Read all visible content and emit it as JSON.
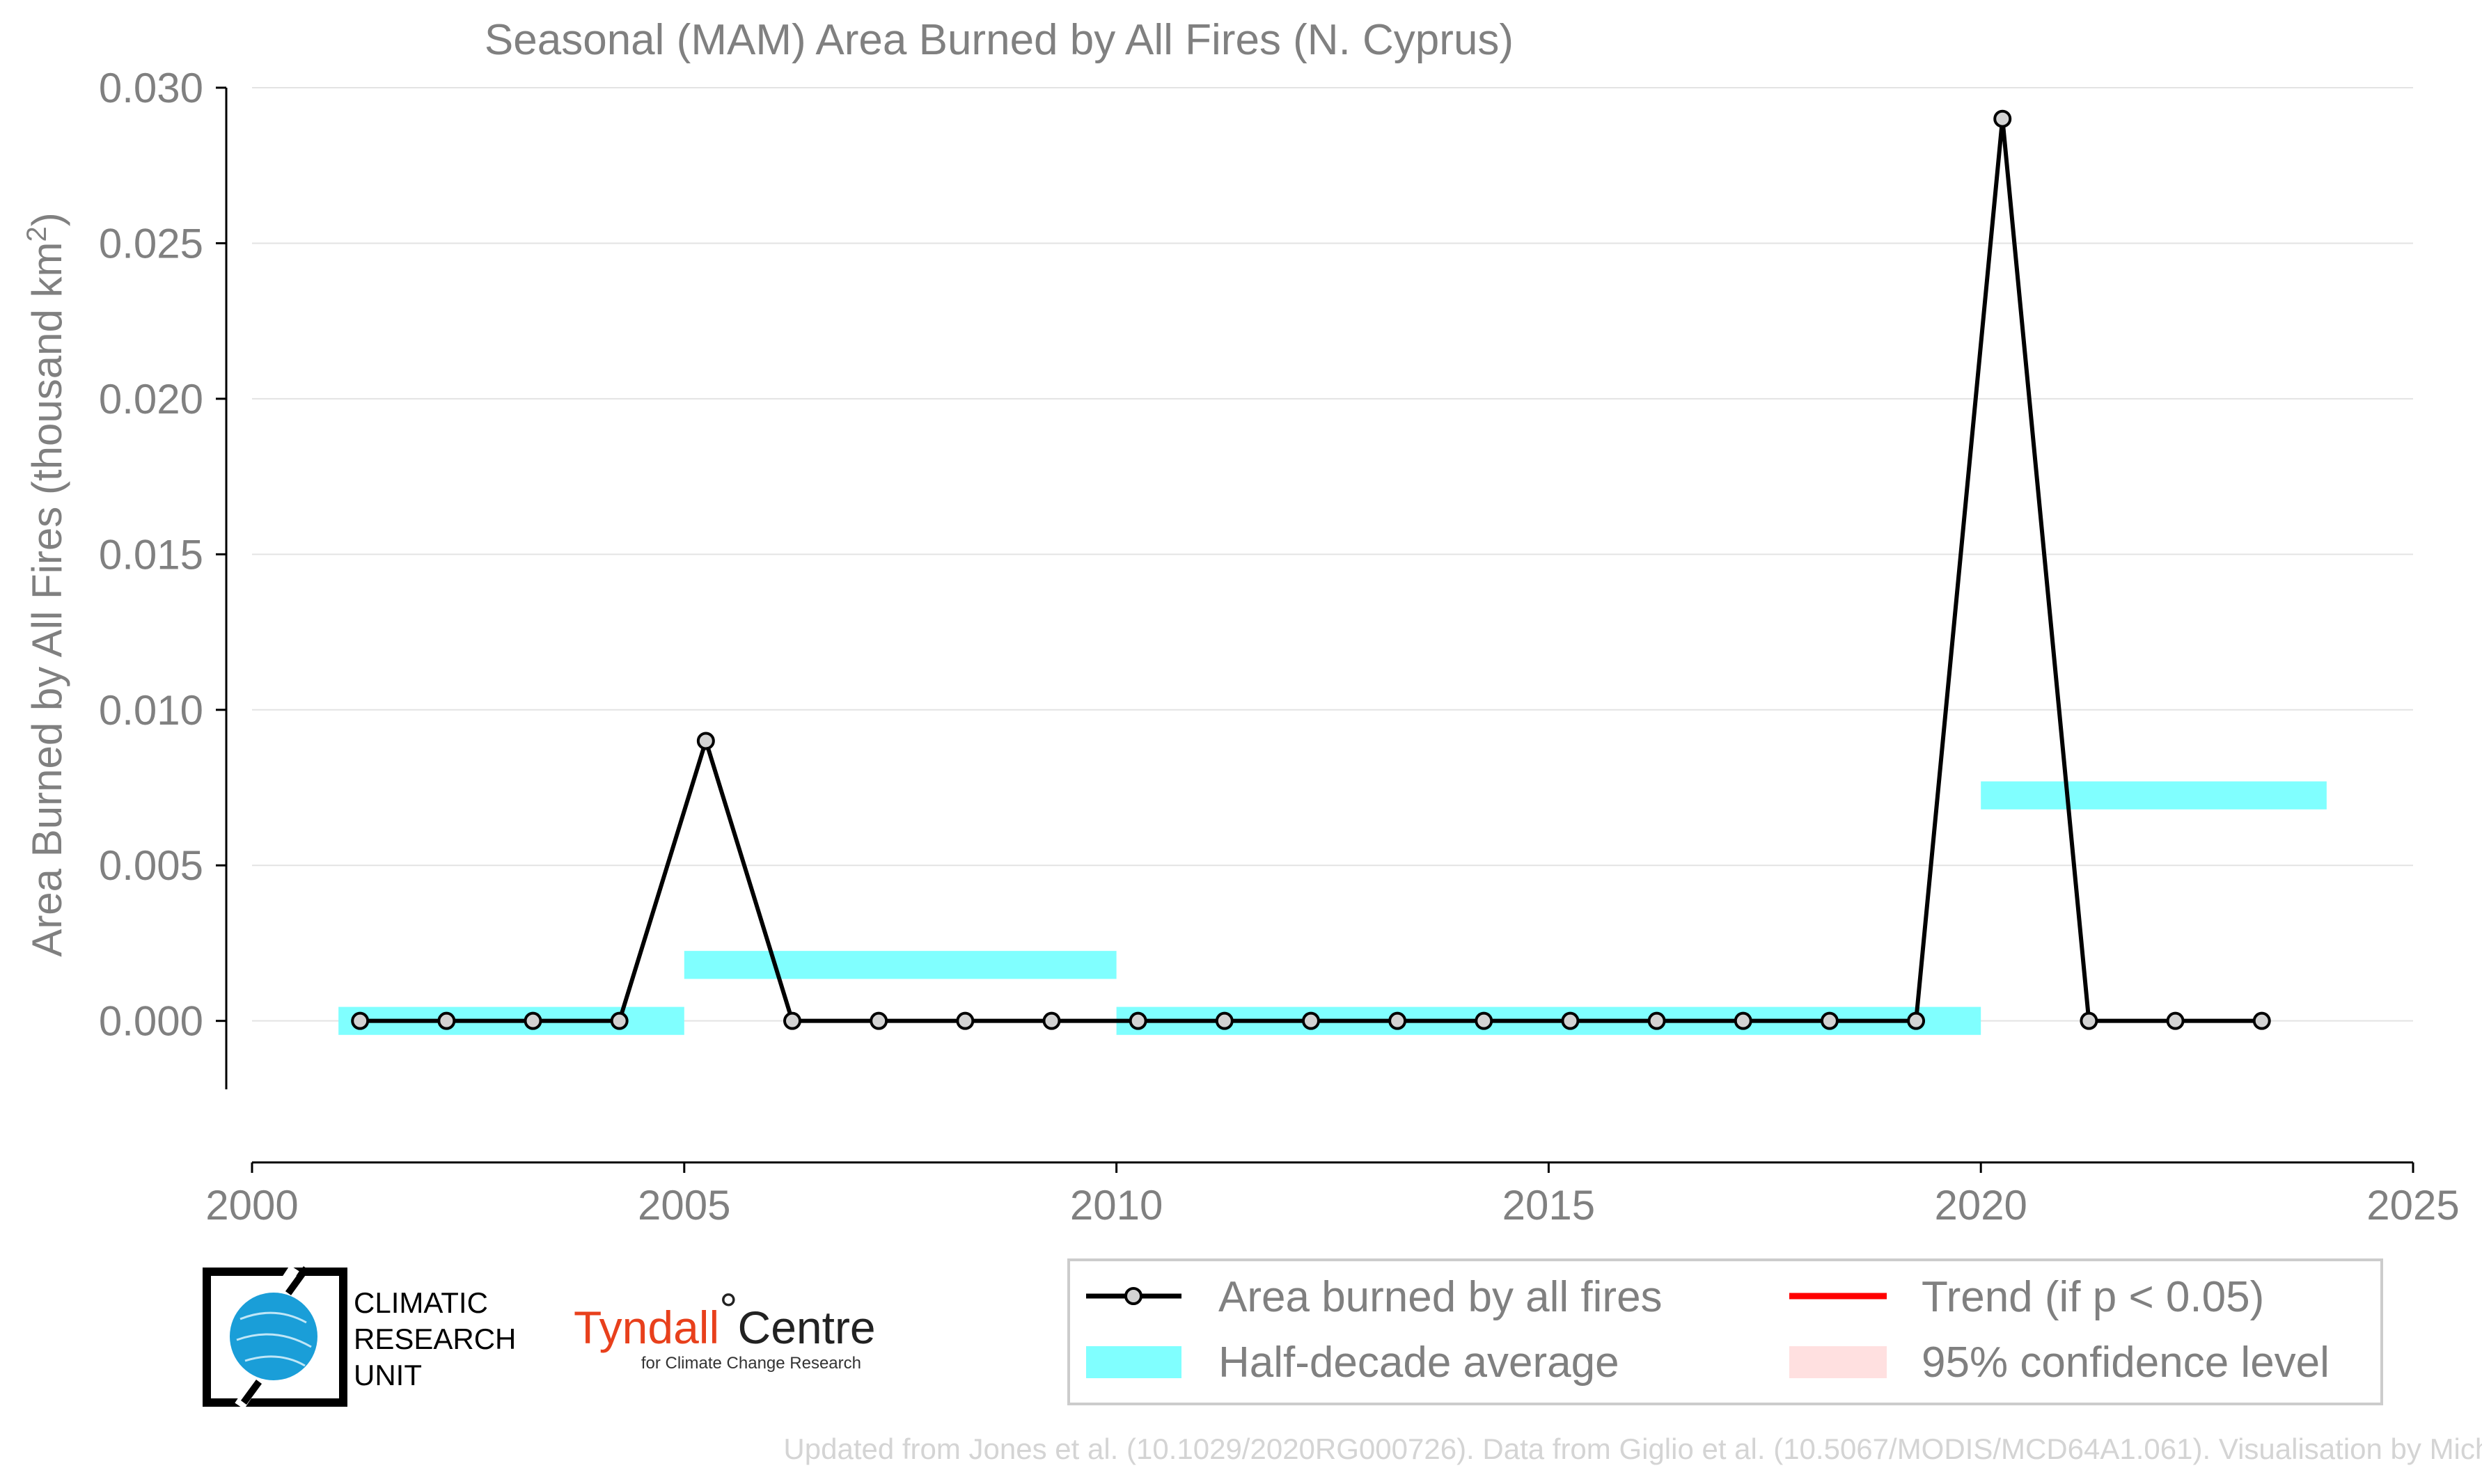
{
  "chart_data": {
    "type": "line",
    "title": "Seasonal (MAM) Area Burned by All Fires (N. Cyprus)",
    "ylabel": "Area Burned by All Fires (thousand km",
    "ylabel_sup": "2",
    "ylabel_end": ")",
    "xlim": [
      2000,
      2025
    ],
    "ylim": [
      -0.0022,
      0.03
    ],
    "x_ticks": [
      2000,
      2005,
      2010,
      2015,
      2020,
      2025
    ],
    "y_ticks": [
      0.0,
      0.005,
      0.01,
      0.015,
      0.02,
      0.025,
      0.03
    ],
    "y_tick_labels": [
      "0.000",
      "0.005",
      "0.010",
      "0.015",
      "0.020",
      "0.025",
      "0.030"
    ],
    "grid": "horizontal",
    "series": [
      {
        "name": "Area burned by all fires",
        "color": "#000000",
        "x": [
          2001.25,
          2002.25,
          2003.25,
          2004.25,
          2005.25,
          2006.25,
          2007.25,
          2008.25,
          2009.25,
          2010.25,
          2011.25,
          2012.25,
          2013.25,
          2014.25,
          2015.25,
          2016.25,
          2017.25,
          2018.25,
          2019.25,
          2020.25,
          2021.25,
          2022.25,
          2023.25
        ],
        "y": [
          0,
          0,
          0,
          0,
          0.009,
          0,
          0,
          0,
          0,
          0,
          0,
          0,
          0,
          0,
          0,
          0,
          0,
          0,
          0,
          0.029,
          0,
          0,
          0
        ]
      }
    ],
    "half_decade_average": {
      "name": "Half-decade average",
      "color": "#80ffff",
      "segments": [
        {
          "x0": 2001,
          "x1": 2005,
          "y": 0.0
        },
        {
          "x0": 2005,
          "x1": 2010,
          "y": 0.0018
        },
        {
          "x0": 2010,
          "x1": 2020,
          "y": 0.0
        },
        {
          "x0": 2020,
          "x1": 2024,
          "y": 0.00725
        }
      ]
    },
    "legend": {
      "placement": "bottom-right",
      "entries": [
        {
          "label": "Area burned by all fires",
          "kind": "line-marker",
          "color": "#000000"
        },
        {
          "label": "Trend (if p < 0.05)",
          "kind": "line",
          "color": "#ff0000"
        },
        {
          "label": "Half-decade average",
          "kind": "band",
          "color": "#80ffff"
        },
        {
          "label": "95% confidence level",
          "kind": "band",
          "color": "#ffe0e0"
        }
      ]
    }
  },
  "logos": {
    "cru": [
      "CLIMATIC",
      "RESEARCH",
      "UNIT"
    ],
    "tyndall_main": "Tyndall",
    "tyndall_degree": "°",
    "tyndall_centre": "Centre",
    "tyndall_sub": "for Climate Change Research"
  },
  "footer": "Updated from Jones et al. (10.1029/2020RG000726). Data from Giglio et al. (10.5067/MODIS/MCD64A1.061). Visualisation by Michael Taylor."
}
